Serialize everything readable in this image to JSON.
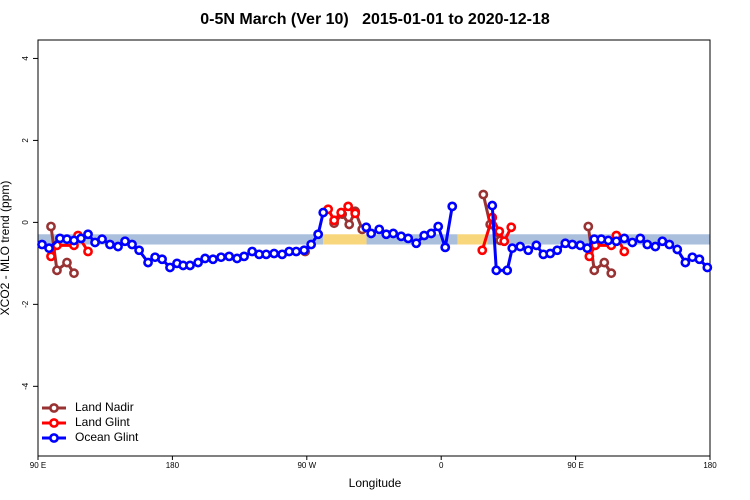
{
  "chart_data": {
    "type": "line",
    "title": "0-5N March (Ver 10)   2015-01-01 to 2020-12-18",
    "x_label": "Longitude",
    "y_label": "XCO2 - MLO trend (ppm)",
    "xlim": [
      90,
      540
    ],
    "ylim": [
      -5.7,
      4.45
    ],
    "xticks": [
      {
        "value": 90,
        "label": "90 E"
      },
      180,
      {
        "value": 270,
        "label": "90 W"
      },
      {
        "value": 360,
        "label": "0"
      },
      {
        "value": 450,
        "label": "90 E"
      },
      {
        "value": 540,
        "label": "180"
      }
    ],
    "yticks": [
      -4,
      -2,
      0,
      2,
      4
    ],
    "legend": "bottomleft",
    "reference_band": {
      "ylim": [
        -0.54,
        -0.29
      ],
      "segments": [
        {
          "xlim": [
            90,
            281
          ],
          "color": "#a9bfdc"
        },
        {
          "xlim": [
            281,
            310
          ],
          "color": "#f8d67c"
        },
        {
          "xlim": [
            310,
            371
          ],
          "color": "#a9bfdc"
        },
        {
          "xlim": [
            371,
            391
          ],
          "color": "#f8d67c"
        },
        {
          "xlim": [
            391,
            540
          ],
          "color": "#a9bfdc"
        }
      ]
    },
    "series": [
      {
        "name": "Land Nadir",
        "color": "#993333",
        "x": [
          98.7,
          102.7,
          109.4,
          114.1,
          null,
          268.9,
          null,
          288.3,
          293.7,
          298.4,
          302.4,
          307.1,
          null,
          388.2,
          392.8,
          399.5,
          null,
          458.5,
          462.5,
          469.2,
          473.9
        ],
        "values": [
          -0.1,
          -1.17,
          -0.98,
          -1.24,
          null,
          -0.71,
          null,
          -0.02,
          0.2,
          -0.05,
          0.27,
          -0.17,
          null,
          0.68,
          -0.05,
          -0.44,
          null,
          -0.1,
          -1.17,
          -0.98,
          -1.24
        ]
      },
      {
        "name": "Land Glint",
        "color": "#ff0000",
        "x": [
          98.7,
          102.7,
          114.1,
          116.8,
          123.5,
          null,
          284.3,
          288.3,
          293.0,
          297.7,
          302.4,
          null,
          387.5,
          394.2,
          398.9,
          402.2,
          406.9,
          null,
          459.2,
          463.2,
          473.9,
          477.3,
          482.6
        ],
        "values": [
          -0.83,
          -0.56,
          -0.56,
          -0.32,
          -0.71,
          null,
          0.32,
          0.05,
          0.24,
          0.39,
          0.22,
          null,
          -0.68,
          0.12,
          -0.22,
          -0.46,
          -0.12,
          null,
          -0.83,
          -0.56,
          -0.56,
          -0.32,
          -0.71
        ]
      },
      {
        "name": "Ocean Glint",
        "color": "#0000ff",
        "x": [
          92.7,
          97.4,
          104.7,
          109.4,
          114.1,
          118.8,
          123.5,
          128.2,
          132.9,
          138.2,
          143.6,
          148.3,
          153.0,
          157.7,
          163.7,
          168.4,
          173.1,
          178.4,
          183.1,
          187.2,
          191.8,
          197.2,
          201.9,
          207.2,
          212.6,
          218.0,
          223.3,
          228.0,
          233.4,
          238.1,
          242.8,
          248.1,
          253.5,
          258.2,
          262.9,
          268.2,
          272.9,
          277.6,
          281.0,
          null,
          309.8,
          313.1,
          318.5,
          323.2,
          327.9,
          333.2,
          337.9,
          343.3,
          348.6,
          353.3,
          358.0,
          362.7,
          367.4,
          null,
          394.2,
          396.9,
          404.2,
          407.6,
          412.9,
          418.3,
          423.7,
          428.4,
          433.0,
          437.7,
          443.1,
          447.8,
          453.1,
          457.8,
          462.5,
          467.2,
          471.9,
          477.3,
          482.6,
          488.0,
          493.3,
          498.0,
          503.4,
          508.1,
          512.8,
          518.1,
          523.5,
          528.2,
          532.9,
          538.2
        ],
        "values": [
          -0.54,
          -0.63,
          -0.39,
          -0.41,
          -0.44,
          -0.39,
          -0.29,
          -0.49,
          -0.41,
          -0.54,
          -0.59,
          -0.46,
          -0.54,
          -0.68,
          -0.98,
          -0.85,
          -0.9,
          -1.1,
          -1.0,
          -1.05,
          -1.05,
          -0.98,
          -0.88,
          -0.9,
          -0.85,
          -0.83,
          -0.88,
          -0.83,
          -0.71,
          -0.78,
          -0.78,
          -0.76,
          -0.78,
          -0.71,
          -0.71,
          -0.68,
          -0.54,
          -0.29,
          0.24,
          null,
          -0.12,
          -0.27,
          -0.17,
          -0.29,
          -0.27,
          -0.34,
          -0.39,
          -0.51,
          -0.32,
          -0.27,
          -0.1,
          -0.61,
          0.39,
          null,
          0.41,
          -1.17,
          -1.17,
          -0.63,
          -0.59,
          -0.68,
          -0.56,
          -0.78,
          -0.76,
          -0.68,
          -0.51,
          -0.54,
          -0.56,
          -0.63,
          -0.41,
          -0.41,
          -0.44,
          -0.46,
          -0.39,
          -0.49,
          -0.39,
          -0.54,
          -0.59,
          -0.46,
          -0.54,
          -0.66,
          -0.98,
          -0.85,
          -0.9,
          -1.1
        ]
      }
    ]
  }
}
